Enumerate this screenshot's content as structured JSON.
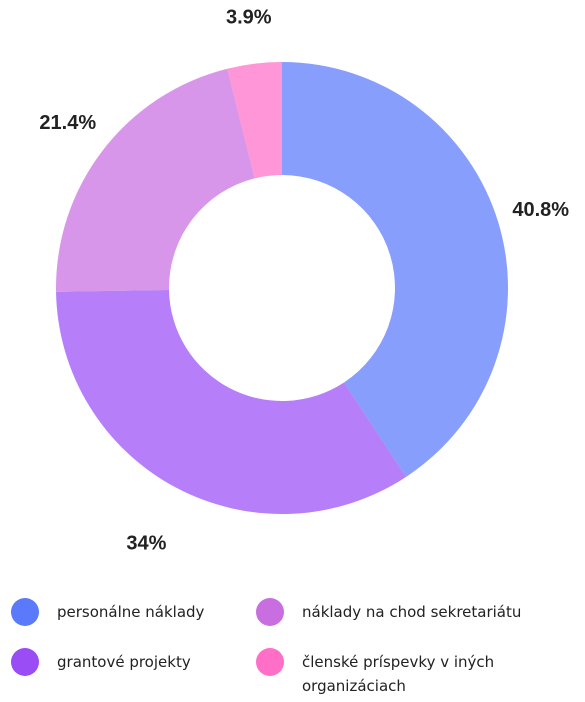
{
  "chart_data": {
    "type": "donut",
    "categories": [
      "personálne náklady",
      "grantové projekty",
      "náklady na chod sekretariátu",
      "členské príspevky v iných organizáciach"
    ],
    "values": [
      40.8,
      34,
      21.4,
      3.9
    ],
    "value_labels": [
      "40.8%",
      "34%",
      "21.4%",
      "3.9%"
    ],
    "colors": [
      "#5a79fb",
      "#9a4cf5",
      "#c86ee0",
      "#ff6ec7"
    ]
  }
}
